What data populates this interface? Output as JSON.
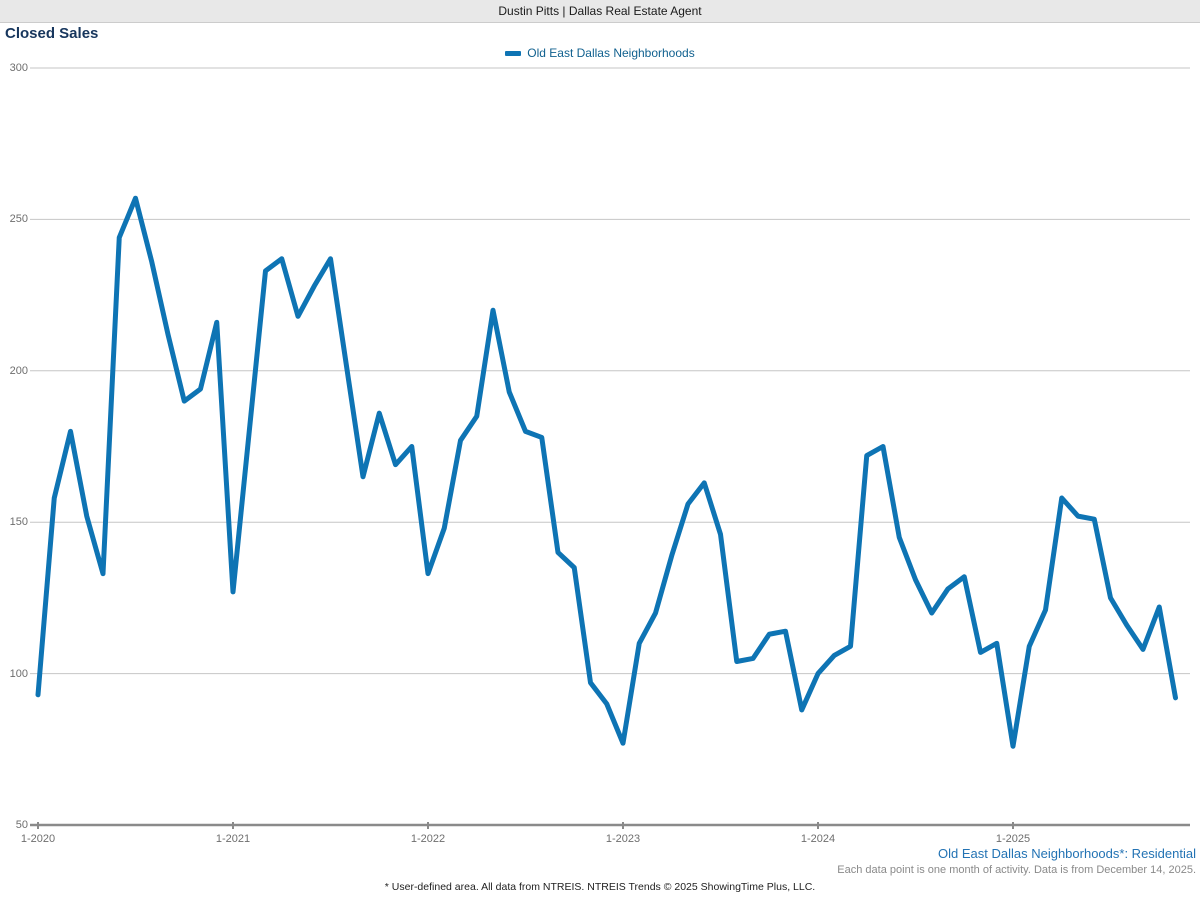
{
  "header": {
    "brand": "Dustin Pitts | Dallas Real Estate Agent"
  },
  "chart": {
    "title": "Closed Sales",
    "legend_label": "Old East Dallas Neighborhoods"
  },
  "footer": {
    "series_note": "Old East Dallas Neighborhoods*: Residential",
    "data_note": "Each data point is one month of activity. Data is from December 14, 2025.",
    "disclaimer": "* User-defined area. All data from NTREIS. NTREIS Trends © 2025 ShowingTime Plus, LLC."
  },
  "colors": {
    "line": "#0e74b4",
    "title": "#17365d",
    "legend_text": "#11618f",
    "grid": "#c6c6c6",
    "axis": "#8a8a8a",
    "tick_text": "#6e6e6e",
    "topbar_bg": "#e8e8e8"
  },
  "chart_data": {
    "type": "line",
    "title": "Closed Sales",
    "legend_position": "top-center",
    "grid": true,
    "x_axis": {
      "interval": "month",
      "start": "1-2020",
      "end": "11-2025",
      "tick_labels": [
        "1-2020",
        "1-2021",
        "1-2022",
        "1-2023",
        "1-2024",
        "1-2025"
      ]
    },
    "y_axis": {
      "min": 50,
      "max": 300,
      "tick_labels": [
        "300",
        "250",
        "200",
        "150",
        "100",
        "50"
      ]
    },
    "series": [
      {
        "name": "Old East Dallas Neighborhoods",
        "color": "#0e74b4",
        "values": [
          93,
          158,
          180,
          152,
          133,
          244,
          257,
          236,
          212,
          190,
          194,
          216,
          127,
          180,
          233,
          237,
          218,
          228,
          237,
          201,
          165,
          186,
          169,
          175,
          133,
          148,
          177,
          185,
          220,
          193,
          180,
          178,
          140,
          135,
          97,
          90,
          77,
          110,
          120,
          139,
          156,
          163,
          146,
          104,
          105,
          113,
          114,
          88,
          100,
          106,
          109,
          172,
          175,
          145,
          131,
          120,
          128,
          132,
          107,
          110,
          76,
          109,
          121,
          158,
          152,
          151,
          125,
          116,
          108,
          122,
          92
        ]
      }
    ]
  }
}
